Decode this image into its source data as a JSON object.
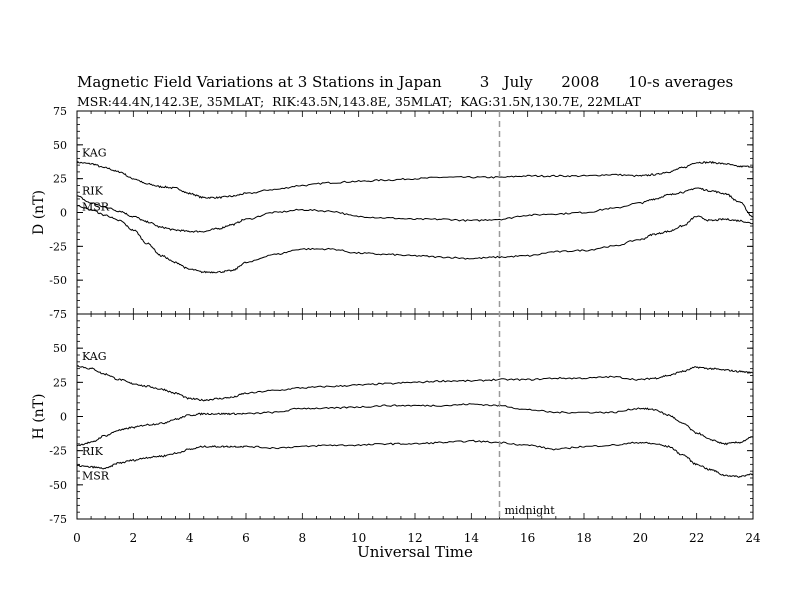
{
  "title": "Magnetic Field Variations at 3 Stations in Japan        3   July      2008      10-s averages",
  "subtitle": "MSR:44.4N,142.3E, 35MLAT;  RIK:43.5N,143.8E, 35MLAT;  KAG:31.5N,130.7E, 22MLAT",
  "chart_data": [
    {
      "type": "line",
      "ylabel": "D (nT)",
      "ylim": [
        -75,
        75
      ],
      "yticks": [
        75,
        50,
        25,
        0,
        -25,
        -50,
        -75
      ],
      "xlim": [
        0,
        24
      ],
      "grid": false,
      "series": [
        {
          "name": "KAG",
          "x": [
            0,
            0.5,
            1,
            1.5,
            2,
            2.5,
            3,
            3.5,
            4,
            4.5,
            5,
            5.5,
            6,
            7,
            8,
            9,
            10,
            11,
            12,
            13,
            14,
            15,
            16,
            17,
            18,
            19,
            20,
            20.5,
            21,
            21.5,
            22,
            22.5,
            23,
            23.5,
            24
          ],
          "y": [
            37,
            36,
            33,
            30,
            25,
            21,
            19,
            18,
            14,
            11,
            11,
            12,
            14,
            17,
            20,
            22,
            23,
            24,
            25,
            26,
            26,
            26,
            27,
            27,
            27,
            28,
            27,
            28,
            30,
            33,
            37,
            37,
            36,
            34,
            34
          ]
        },
        {
          "name": "RIK",
          "x": [
            0,
            0.5,
            1,
            1.5,
            2,
            2.5,
            3,
            3.5,
            4,
            4.5,
            5,
            5.5,
            6,
            7,
            8,
            9,
            10,
            11,
            12,
            13,
            14,
            15,
            16,
            17,
            18,
            19,
            20,
            20.5,
            21,
            21.5,
            22,
            22.5,
            23,
            23.5,
            24
          ],
          "y": [
            12,
            7,
            4,
            1,
            -3,
            -7,
            -11,
            -13,
            -14,
            -14,
            -12,
            -9,
            -5,
            0,
            2,
            1,
            -3,
            -4,
            -5,
            -5,
            -6,
            -5,
            -2,
            -1,
            0,
            3,
            7,
            10,
            13,
            15,
            18,
            16,
            14,
            8,
            -3
          ]
        },
        {
          "name": "MSR",
          "x": [
            0,
            0.5,
            1,
            1.5,
            2,
            2.5,
            3,
            3.5,
            4,
            4.5,
            5,
            5.5,
            6,
            7,
            8,
            9,
            10,
            11,
            12,
            13,
            14,
            15,
            16,
            17,
            18,
            19,
            20,
            20.5,
            21,
            21.5,
            22,
            22.5,
            23,
            23.5,
            24
          ],
          "y": [
            5,
            2,
            -2,
            -6,
            -13,
            -23,
            -32,
            -37,
            -42,
            -44,
            -44,
            -43,
            -37,
            -31,
            -27,
            -27,
            -30,
            -31,
            -32,
            -33,
            -34,
            -33,
            -32,
            -29,
            -28,
            -25,
            -20,
            -16,
            -14,
            -10,
            -3,
            -6,
            -5,
            -6,
            -8
          ]
        }
      ]
    },
    {
      "type": "line",
      "ylabel": "H (nT)",
      "ylim": [
        -75,
        75
      ],
      "yticks": [
        50,
        25,
        0,
        -25,
        -50,
        -75
      ],
      "xlim": [
        0,
        24
      ],
      "xlabel": "Universal Time",
      "xticks": [
        0,
        2,
        4,
        6,
        8,
        10,
        12,
        14,
        16,
        18,
        20,
        22,
        24
      ],
      "grid": false,
      "series": [
        {
          "name": "KAG",
          "x": [
            0,
            0.5,
            1,
            1.5,
            2,
            2.5,
            3,
            3.5,
            4,
            4.5,
            5,
            5.5,
            6,
            7,
            8,
            9,
            10,
            11,
            12,
            13,
            14,
            15,
            16,
            17,
            18,
            19,
            20,
            20.5,
            21,
            21.5,
            22,
            22.5,
            23,
            23.5,
            24
          ],
          "y": [
            37,
            35,
            31,
            27,
            24,
            22,
            20,
            17,
            13,
            12,
            13,
            14,
            17,
            19,
            21,
            22,
            23,
            24,
            25,
            26,
            26,
            27,
            27,
            28,
            28,
            29,
            27,
            28,
            30,
            33,
            36,
            35,
            34,
            33,
            32
          ]
        },
        {
          "name": "RIK",
          "x": [
            0,
            0.5,
            1,
            1.5,
            2,
            2.5,
            3,
            3.5,
            4,
            4.5,
            5,
            5.5,
            6,
            7,
            8,
            9,
            10,
            11,
            12,
            13,
            14,
            15,
            16,
            17,
            18,
            19,
            20,
            20.5,
            21,
            21.5,
            22,
            22.5,
            23,
            23.5,
            24
          ],
          "y": [
            -21,
            -19,
            -14,
            -10,
            -8,
            -6,
            -5,
            -2,
            1,
            2,
            2,
            2,
            2,
            3,
            6,
            6,
            7,
            8,
            8,
            8,
            9,
            8,
            5,
            3,
            3,
            3,
            6,
            5,
            1,
            -5,
            -12,
            -17,
            -20,
            -19,
            -15
          ]
        },
        {
          "name": "MSR",
          "x": [
            0,
            0.5,
            1,
            1.5,
            2,
            2.5,
            3,
            3.5,
            4,
            4.5,
            5,
            5.5,
            6,
            7,
            8,
            9,
            10,
            11,
            12,
            13,
            14,
            15,
            16,
            17,
            18,
            19,
            20,
            20.5,
            21,
            21.5,
            22,
            22.5,
            23,
            23.5,
            24
          ],
          "y": [
            -36,
            -37,
            -38,
            -34,
            -32,
            -30,
            -29,
            -27,
            -24,
            -22,
            -22,
            -22,
            -22,
            -23,
            -22,
            -21,
            -21,
            -20,
            -20,
            -19,
            -18,
            -19,
            -21,
            -24,
            -22,
            -21,
            -19,
            -20,
            -22,
            -28,
            -35,
            -39,
            -43,
            -44,
            -42
          ]
        }
      ]
    }
  ],
  "annotations": {
    "midnight_label": "midnight",
    "midnight_ut": 15
  }
}
